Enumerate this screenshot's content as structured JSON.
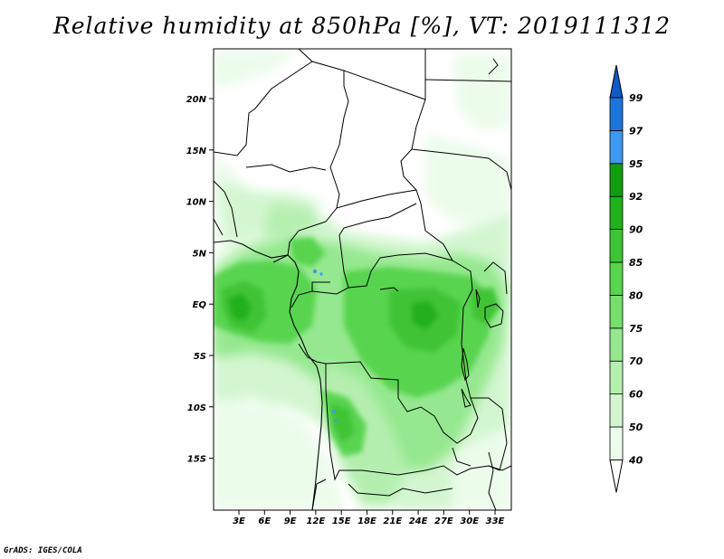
{
  "title": "Relative humidity at 850hPa [%], VT: 2019111312",
  "credit": "GrADS: IGES/COLA",
  "map": {
    "lat_labels": [
      "20N",
      "15N",
      "10N",
      "5N",
      "EQ",
      "5S",
      "10S",
      "15S"
    ],
    "lon_labels": [
      "3E",
      "6E",
      "9E",
      "12E",
      "15E",
      "18E",
      "21E",
      "24E",
      "27E",
      "30E",
      "33E"
    ]
  },
  "colorbar": {
    "levels": [
      "40",
      "50",
      "60",
      "70",
      "75",
      "80",
      "85",
      "90",
      "92",
      "95",
      "97",
      "99"
    ],
    "colors": [
      "#ffffff",
      "#ecfceb",
      "#d3f6d0",
      "#b5efb0",
      "#95e88f",
      "#76df6e",
      "#58d44f",
      "#3fc435",
      "#22b01c",
      "#149c10",
      "#3e98ee",
      "#1f74d9",
      "#1059c8"
    ]
  }
}
